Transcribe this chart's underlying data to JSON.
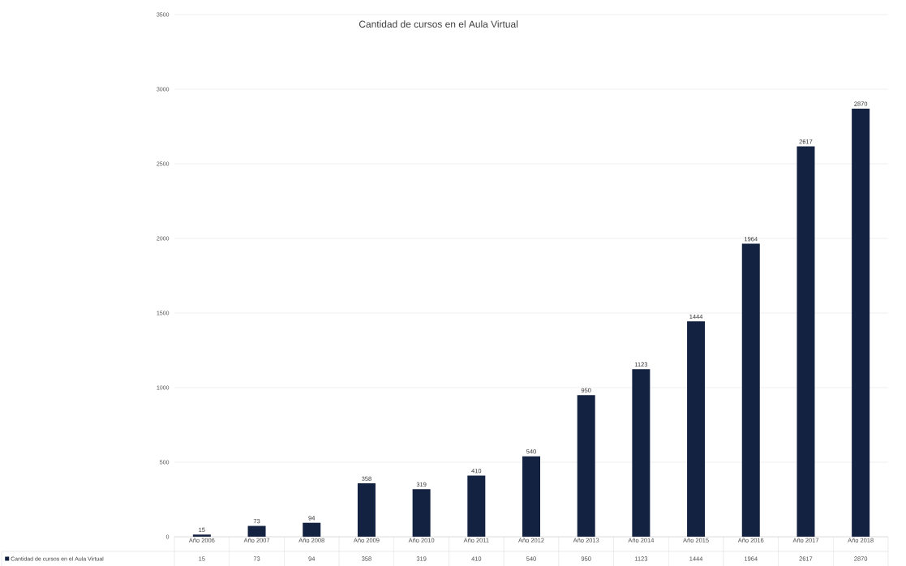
{
  "chart_data": {
    "type": "bar",
    "title": "Cantidad de cursos en el Aula Virtual",
    "categories": [
      "Año 2006",
      "Año 2007",
      "Año 2008",
      "Año 2009",
      "Año 2010",
      "Año 2011",
      "Año 2012",
      "Año 2013",
      "Año 2014",
      "Año 2015",
      "Año 2016",
      "Año 2017",
      "Año 2018"
    ],
    "series": [
      {
        "name": "Cantidad de cursos en el Aula Virtual",
        "color": "#142241",
        "values": [
          15,
          73,
          94,
          358,
          319,
          410,
          540,
          950,
          1123,
          1444,
          1964,
          2617,
          2870
        ],
        "value_labels": [
          "15",
          "73",
          "94",
          "358",
          "319",
          "410",
          "540",
          "950",
          "1123",
          "1444",
          "1964",
          "2617",
          "2870"
        ]
      }
    ],
    "ylim": [
      0,
      3500
    ],
    "yticks": [
      0,
      500,
      1000,
      1500,
      2000,
      2500,
      3000,
      3500
    ],
    "grid": "y",
    "data_labels": true,
    "legend": "bottom"
  }
}
